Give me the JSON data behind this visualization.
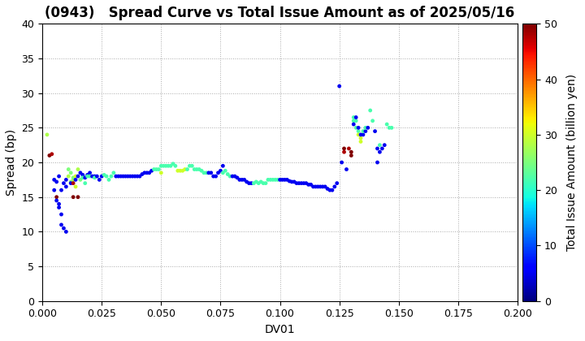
{
  "title": "(0943)   Spread Curve vs Total Issue Amount as of 2025/05/16",
  "xlabel": "DV01",
  "ylabel": "Spread (bp)",
  "colorbar_label": "Total Issue Amount (billion yen)",
  "xlim": [
    0.0,
    0.2
  ],
  "ylim": [
    0,
    40
  ],
  "xticks": [
    0.0,
    0.025,
    0.05,
    0.075,
    0.1,
    0.125,
    0.15,
    0.175,
    0.2
  ],
  "yticks": [
    0,
    5,
    10,
    15,
    20,
    25,
    30,
    35,
    40
  ],
  "cbar_ticks": [
    0,
    10,
    20,
    30,
    40,
    50
  ],
  "clim": [
    0,
    50
  ],
  "scatter_points": [
    [
      0.002,
      24.0,
      28
    ],
    [
      0.003,
      21.0,
      50
    ],
    [
      0.004,
      21.2,
      48
    ],
    [
      0.005,
      17.5,
      5
    ],
    [
      0.005,
      16.0,
      5
    ],
    [
      0.006,
      17.2,
      5
    ],
    [
      0.006,
      15.0,
      50
    ],
    [
      0.006,
      14.5,
      5
    ],
    [
      0.007,
      14.0,
      5
    ],
    [
      0.007,
      13.5,
      5
    ],
    [
      0.007,
      18.0,
      5
    ],
    [
      0.008,
      12.5,
      5
    ],
    [
      0.008,
      11.0,
      5
    ],
    [
      0.008,
      16.0,
      5
    ],
    [
      0.009,
      10.5,
      5
    ],
    [
      0.009,
      17.0,
      5
    ],
    [
      0.01,
      10.0,
      5
    ],
    [
      0.01,
      16.5,
      5
    ],
    [
      0.01,
      17.5,
      5
    ],
    [
      0.011,
      18.0,
      28
    ],
    [
      0.011,
      19.0,
      25
    ],
    [
      0.012,
      18.5,
      25
    ],
    [
      0.012,
      17.2,
      25
    ],
    [
      0.012,
      17.0,
      5
    ],
    [
      0.013,
      15.0,
      50
    ],
    [
      0.013,
      17.5,
      28
    ],
    [
      0.013,
      17.0,
      48
    ],
    [
      0.013,
      17.8,
      25
    ],
    [
      0.014,
      18.0,
      30
    ],
    [
      0.014,
      17.5,
      5
    ],
    [
      0.014,
      16.5,
      30
    ],
    [
      0.015,
      18.0,
      5
    ],
    [
      0.015,
      19.0,
      28
    ],
    [
      0.015,
      15.0,
      50
    ],
    [
      0.016,
      18.5,
      5
    ],
    [
      0.016,
      17.5,
      25
    ],
    [
      0.017,
      18.2,
      5
    ],
    [
      0.017,
      17.8,
      22
    ],
    [
      0.018,
      17.8,
      5
    ],
    [
      0.018,
      17.0,
      22
    ],
    [
      0.019,
      18.2,
      5
    ],
    [
      0.019,
      18.0,
      22
    ],
    [
      0.02,
      18.5,
      5
    ],
    [
      0.02,
      18.0,
      22
    ],
    [
      0.021,
      18.0,
      5
    ],
    [
      0.022,
      18.0,
      5
    ],
    [
      0.022,
      17.8,
      22
    ],
    [
      0.023,
      18.0,
      5
    ],
    [
      0.024,
      17.5,
      5
    ],
    [
      0.025,
      18.0,
      5
    ],
    [
      0.026,
      18.2,
      22
    ],
    [
      0.027,
      18.0,
      22
    ],
    [
      0.028,
      17.5,
      22
    ],
    [
      0.029,
      18.0,
      22
    ],
    [
      0.03,
      18.5,
      22
    ],
    [
      0.031,
      18.0,
      5
    ],
    [
      0.032,
      18.0,
      5
    ],
    [
      0.033,
      18.0,
      5
    ],
    [
      0.034,
      18.0,
      5
    ],
    [
      0.035,
      18.0,
      5
    ],
    [
      0.036,
      18.0,
      5
    ],
    [
      0.037,
      18.0,
      5
    ],
    [
      0.038,
      18.0,
      5
    ],
    [
      0.039,
      18.0,
      5
    ],
    [
      0.04,
      18.0,
      5
    ],
    [
      0.041,
      18.0,
      5
    ],
    [
      0.042,
      18.3,
      5
    ],
    [
      0.043,
      18.5,
      5
    ],
    [
      0.044,
      18.5,
      5
    ],
    [
      0.045,
      18.5,
      5
    ],
    [
      0.046,
      18.8,
      5
    ],
    [
      0.047,
      19.0,
      22
    ],
    [
      0.048,
      19.0,
      22
    ],
    [
      0.049,
      19.0,
      22
    ],
    [
      0.05,
      19.5,
      22
    ],
    [
      0.05,
      18.5,
      30
    ],
    [
      0.051,
      19.5,
      22
    ],
    [
      0.052,
      19.5,
      22
    ],
    [
      0.053,
      19.5,
      22
    ],
    [
      0.054,
      19.5,
      22
    ],
    [
      0.055,
      19.8,
      22
    ],
    [
      0.056,
      19.5,
      22
    ],
    [
      0.057,
      18.8,
      30
    ],
    [
      0.058,
      18.8,
      30
    ],
    [
      0.059,
      18.8,
      30
    ],
    [
      0.06,
      19.0,
      30
    ],
    [
      0.061,
      19.0,
      22
    ],
    [
      0.062,
      19.5,
      22
    ],
    [
      0.063,
      19.5,
      22
    ],
    [
      0.064,
      19.0,
      22
    ],
    [
      0.065,
      19.0,
      22
    ],
    [
      0.066,
      19.0,
      22
    ],
    [
      0.067,
      18.8,
      22
    ],
    [
      0.068,
      18.5,
      22
    ],
    [
      0.069,
      18.5,
      22
    ],
    [
      0.07,
      18.5,
      5
    ],
    [
      0.071,
      18.5,
      5
    ],
    [
      0.072,
      18.0,
      5
    ],
    [
      0.073,
      18.0,
      5
    ],
    [
      0.074,
      18.5,
      5
    ],
    [
      0.075,
      18.8,
      5
    ],
    [
      0.076,
      19.5,
      5
    ],
    [
      0.076,
      18.5,
      22
    ],
    [
      0.077,
      18.8,
      22
    ],
    [
      0.078,
      18.3,
      22
    ],
    [
      0.079,
      18.0,
      22
    ],
    [
      0.08,
      18.0,
      5
    ],
    [
      0.081,
      18.0,
      5
    ],
    [
      0.082,
      17.8,
      5
    ],
    [
      0.083,
      17.5,
      5
    ],
    [
      0.084,
      17.5,
      5
    ],
    [
      0.085,
      17.5,
      5
    ],
    [
      0.086,
      17.2,
      5
    ],
    [
      0.087,
      17.0,
      5
    ],
    [
      0.088,
      17.0,
      5
    ],
    [
      0.089,
      17.0,
      22
    ],
    [
      0.09,
      17.2,
      22
    ],
    [
      0.091,
      17.0,
      22
    ],
    [
      0.092,
      17.2,
      22
    ],
    [
      0.093,
      17.0,
      22
    ],
    [
      0.094,
      17.0,
      22
    ],
    [
      0.095,
      17.5,
      22
    ],
    [
      0.096,
      17.5,
      22
    ],
    [
      0.097,
      17.5,
      22
    ],
    [
      0.098,
      17.5,
      22
    ],
    [
      0.099,
      17.5,
      22
    ],
    [
      0.1,
      17.5,
      5
    ],
    [
      0.101,
      17.5,
      5
    ],
    [
      0.102,
      17.5,
      5
    ],
    [
      0.103,
      17.5,
      5
    ],
    [
      0.104,
      17.3,
      5
    ],
    [
      0.105,
      17.2,
      5
    ],
    [
      0.106,
      17.2,
      5
    ],
    [
      0.107,
      17.0,
      5
    ],
    [
      0.108,
      17.0,
      5
    ],
    [
      0.109,
      17.0,
      5
    ],
    [
      0.11,
      17.0,
      5
    ],
    [
      0.111,
      17.0,
      5
    ],
    [
      0.112,
      16.8,
      5
    ],
    [
      0.113,
      16.8,
      5
    ],
    [
      0.114,
      16.5,
      5
    ],
    [
      0.115,
      16.5,
      5
    ],
    [
      0.116,
      16.5,
      5
    ],
    [
      0.117,
      16.5,
      5
    ],
    [
      0.118,
      16.5,
      5
    ],
    [
      0.119,
      16.5,
      5
    ],
    [
      0.12,
      16.2,
      5
    ],
    [
      0.121,
      16.0,
      5
    ],
    [
      0.122,
      16.0,
      5
    ],
    [
      0.123,
      16.5,
      5
    ],
    [
      0.124,
      17.0,
      5
    ],
    [
      0.125,
      31.0,
      5
    ],
    [
      0.126,
      20.0,
      5
    ],
    [
      0.127,
      22.0,
      50
    ],
    [
      0.127,
      21.5,
      48
    ],
    [
      0.128,
      19.0,
      5
    ],
    [
      0.129,
      22.0,
      48
    ],
    [
      0.13,
      21.5,
      50
    ],
    [
      0.13,
      21.0,
      50
    ],
    [
      0.131,
      26.0,
      22
    ],
    [
      0.131,
      26.5,
      22
    ],
    [
      0.131,
      25.5,
      5
    ],
    [
      0.132,
      26.0,
      22
    ],
    [
      0.132,
      25.0,
      22
    ],
    [
      0.132,
      26.5,
      5
    ],
    [
      0.133,
      24.5,
      22
    ],
    [
      0.133,
      24.0,
      30
    ],
    [
      0.133,
      25.0,
      5
    ],
    [
      0.134,
      23.5,
      30
    ],
    [
      0.134,
      23.0,
      30
    ],
    [
      0.134,
      24.0,
      5
    ],
    [
      0.135,
      24.0,
      5
    ],
    [
      0.135,
      24.5,
      22
    ],
    [
      0.136,
      24.5,
      5
    ],
    [
      0.136,
      25.0,
      22
    ],
    [
      0.137,
      25.0,
      5
    ],
    [
      0.138,
      27.5,
      22
    ],
    [
      0.139,
      26.0,
      22
    ],
    [
      0.14,
      24.5,
      5
    ],
    [
      0.141,
      22.0,
      5
    ],
    [
      0.141,
      20.0,
      5
    ],
    [
      0.142,
      21.5,
      5
    ],
    [
      0.142,
      22.5,
      22
    ],
    [
      0.143,
      22.0,
      5
    ],
    [
      0.144,
      22.5,
      5
    ],
    [
      0.145,
      25.5,
      22
    ],
    [
      0.146,
      25.0,
      22
    ],
    [
      0.147,
      25.0,
      22
    ]
  ],
  "marker_size": 12,
  "colormap": "jet",
  "grid_color": "#aaaaaa",
  "background_color": "#ffffff",
  "title_fontsize": 12,
  "axis_fontsize": 10,
  "tick_fontsize": 9
}
